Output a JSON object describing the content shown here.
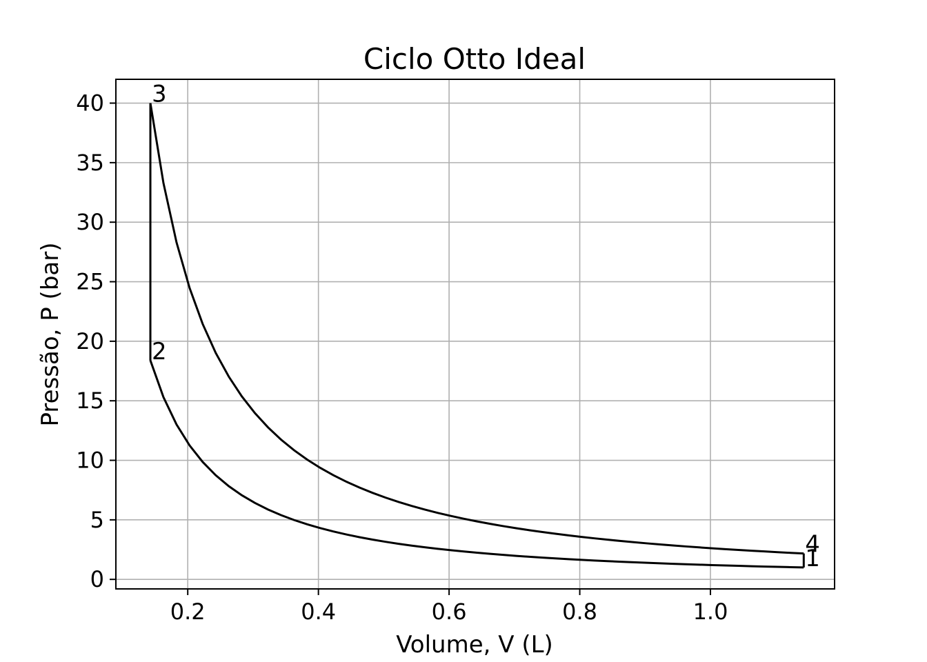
{
  "chart_data": {
    "type": "line",
    "title": "Ciclo Otto Ideal",
    "xlabel": "Volume, V (L)",
    "ylabel": "Pressão, P (bar)",
    "xlim": [
      0.09,
      1.19
    ],
    "ylim": [
      -0.8,
      42.0
    ],
    "grid": true,
    "legend": "none",
    "xticks": [
      0.2,
      0.4,
      0.6,
      0.8,
      1.0
    ],
    "xtick_labels": [
      "0.2",
      "0.4",
      "0.6",
      "0.8",
      "1.0"
    ],
    "yticks": [
      0,
      5,
      10,
      15,
      20,
      25,
      30,
      35,
      40
    ],
    "ytick_labels": [
      "0",
      "5",
      "10",
      "15",
      "20",
      "25",
      "30",
      "35",
      "40"
    ],
    "line_color": "#000000",
    "grid_color": "#b0b0b0",
    "states": [
      {
        "label": "1",
        "V": 1.1428,
        "P": 1.0
      },
      {
        "label": "2",
        "V": 0.1428,
        "P": 18.38
      },
      {
        "label": "3",
        "V": 0.1428,
        "P": 40.0
      },
      {
        "label": "4",
        "V": 1.1428,
        "P": 2.176
      }
    ],
    "process_exponent": 1.4
  }
}
